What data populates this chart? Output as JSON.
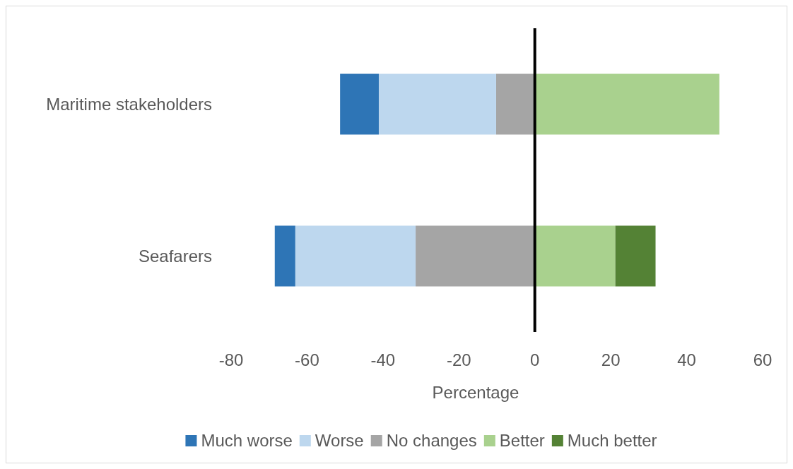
{
  "chart_data": {
    "type": "bar",
    "orientation": "horizontal",
    "stacked": true,
    "xlabel": "Percentage",
    "categories": [
      "Maritime stakeholders",
      "Seafarers"
    ],
    "series": [
      {
        "name": "No changes",
        "color": "#a5a5a5",
        "values": [
          -10.2,
          -31.4
        ]
      },
      {
        "name": "Worse",
        "color": "#bdd7ee",
        "values": [
          -30.9,
          -31.7
        ]
      },
      {
        "name": "Much worse",
        "color": "#2e75b6",
        "values": [
          -10.2,
          -5.4
        ]
      },
      {
        "name": "Better",
        "color": "#a9d18e",
        "values": [
          48.6,
          21.2
        ]
      },
      {
        "name": "Much better",
        "color": "#548235",
        "values": [
          0,
          10.6
        ]
      }
    ],
    "xlim": [
      -80,
      60
    ],
    "xticks": [
      -80,
      -60,
      -40,
      -20,
      0,
      20,
      40,
      60
    ],
    "legend": "bottom"
  }
}
